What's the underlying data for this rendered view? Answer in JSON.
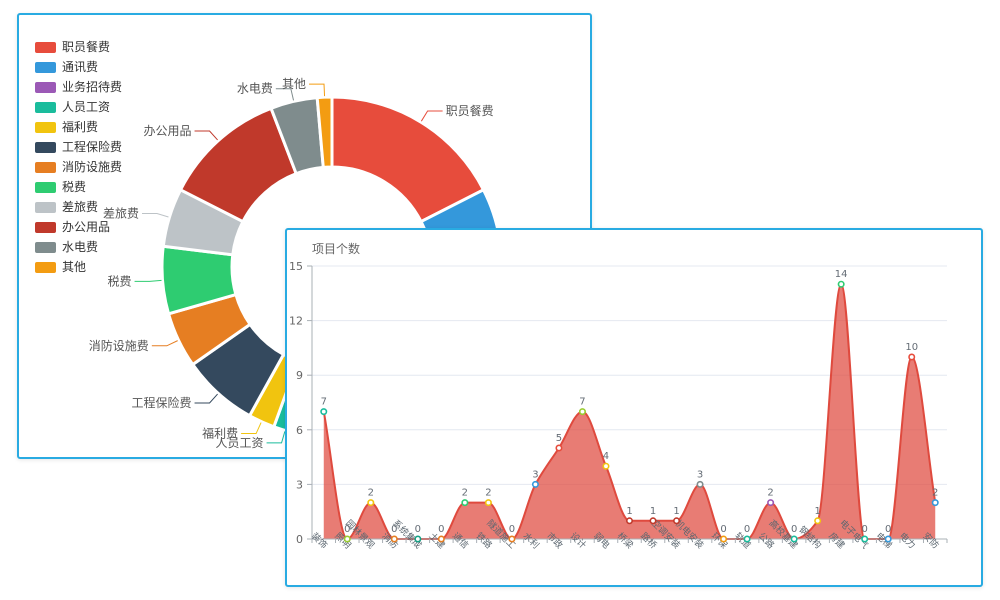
{
  "back_panel": {
    "legend_items": [
      {
        "label": "职员餐费",
        "color": "#e74c3c"
      },
      {
        "label": "通讯费",
        "color": "#3498db"
      },
      {
        "label": "业务招待费",
        "color": "#9b59b6"
      },
      {
        "label": "人员工资",
        "color": "#1abc9c"
      },
      {
        "label": "福利费",
        "color": "#f1c40f"
      },
      {
        "label": "工程保险费",
        "color": "#34495e"
      },
      {
        "label": "消防设施费",
        "color": "#e67e22"
      },
      {
        "label": "税费",
        "color": "#2ecc71"
      },
      {
        "label": "差旅费",
        "color": "#bdc3c7"
      },
      {
        "label": "办公用品",
        "color": "#c0392b"
      },
      {
        "label": "水电费",
        "color": "#7f8c8d"
      },
      {
        "label": "其他",
        "color": "#f39c12"
      }
    ]
  },
  "front_panel": {
    "title": "项目个数"
  },
  "chart_data": [
    {
      "type": "pie",
      "subtype": "donut",
      "legend_position": "top-left",
      "segments": [
        {
          "name": "职员餐费",
          "color": "#e74c3c",
          "start_deg": 0,
          "end_deg": 63
        },
        {
          "name": "通讯费",
          "color": "#3498db",
          "start_deg": 63,
          "end_deg": 97
        },
        {
          "name": "业务招待费",
          "color": "#9b59b6",
          "start_deg": 97,
          "end_deg": 113
        },
        {
          "name": "人员工资",
          "color": "#1abc9c",
          "start_deg": 113,
          "end_deg": 200,
          "label_angle": 196
        },
        {
          "name": "福利费",
          "color": "#f1c40f",
          "start_deg": 200,
          "end_deg": 209
        },
        {
          "name": "工程保险费",
          "color": "#34495e",
          "start_deg": 209,
          "end_deg": 235
        },
        {
          "name": "消防设施费",
          "color": "#e67e22",
          "start_deg": 235,
          "end_deg": 254
        },
        {
          "name": "税费",
          "color": "#2ecc71",
          "start_deg": 254,
          "end_deg": 277
        },
        {
          "name": "差旅费",
          "color": "#bdc3c7",
          "start_deg": 277,
          "end_deg": 297
        },
        {
          "name": "办公用品",
          "color": "#c0392b",
          "start_deg": 297,
          "end_deg": 339
        },
        {
          "name": "水电费",
          "color": "#7f8c8d",
          "start_deg": 339,
          "end_deg": 355
        },
        {
          "name": "其他",
          "color": "#f39c12",
          "start_deg": 355,
          "end_deg": 360
        }
      ]
    },
    {
      "type": "area",
      "title": "项目个数",
      "categories": [
        "装饰",
        "照明",
        "园林景观",
        "消防",
        "系统集成",
        "土建",
        "通信",
        "铁路",
        "隧道施工",
        "水利",
        "市政",
        "设计",
        "弱电",
        "桥梁",
        "路桥",
        "空调安装",
        "机电安装",
        "环保",
        "轨道",
        "公路",
        "高校基建",
        "钢结构",
        "房建",
        "电子电气",
        "电梯",
        "电力",
        "安防"
      ],
      "values": [
        7,
        0,
        2,
        0,
        0,
        0,
        2,
        2,
        0,
        3,
        5,
        7,
        4,
        1,
        1,
        1,
        3,
        0,
        0,
        2,
        0,
        1,
        14,
        0,
        0,
        10,
        2
      ],
      "point_colors": [
        "#1abc9c",
        "#9acd32",
        "#f1c40f",
        "#e67e22",
        "#16a085",
        "#e67e22",
        "#2ecc71",
        "#f1c40f",
        "#e67e22",
        "#3498db",
        "#e74c3c",
        "#9acd32",
        "#f1c40f",
        "#c0392b",
        "#c0392b",
        "#c0392b",
        "#7f8c8d",
        "#f39c12",
        "#1abc9c",
        "#9b59b6",
        "#1abc9c",
        "#f1c40f",
        "#2ecc71",
        "#1abc9c",
        "#3498db",
        "#e74c3c",
        "#3498db"
      ],
      "line_color": "#df4a3e",
      "fill_color": "rgba(223,74,62,0.72)",
      "ylim": [
        0,
        15
      ],
      "yticks": [
        0,
        3,
        6,
        9,
        12,
        15
      ],
      "grid": true,
      "x_label_rotate_deg": 45
    }
  ],
  "ui": {
    "panel_border_color": "#29abe2",
    "background": "#ffffff",
    "axis_label_color": "#5c6770",
    "value_label_color": "#646c75",
    "grid_color": "#e4e8f0",
    "axis_line_color": "#aab0b6",
    "pie_label_color": "#555555"
  }
}
